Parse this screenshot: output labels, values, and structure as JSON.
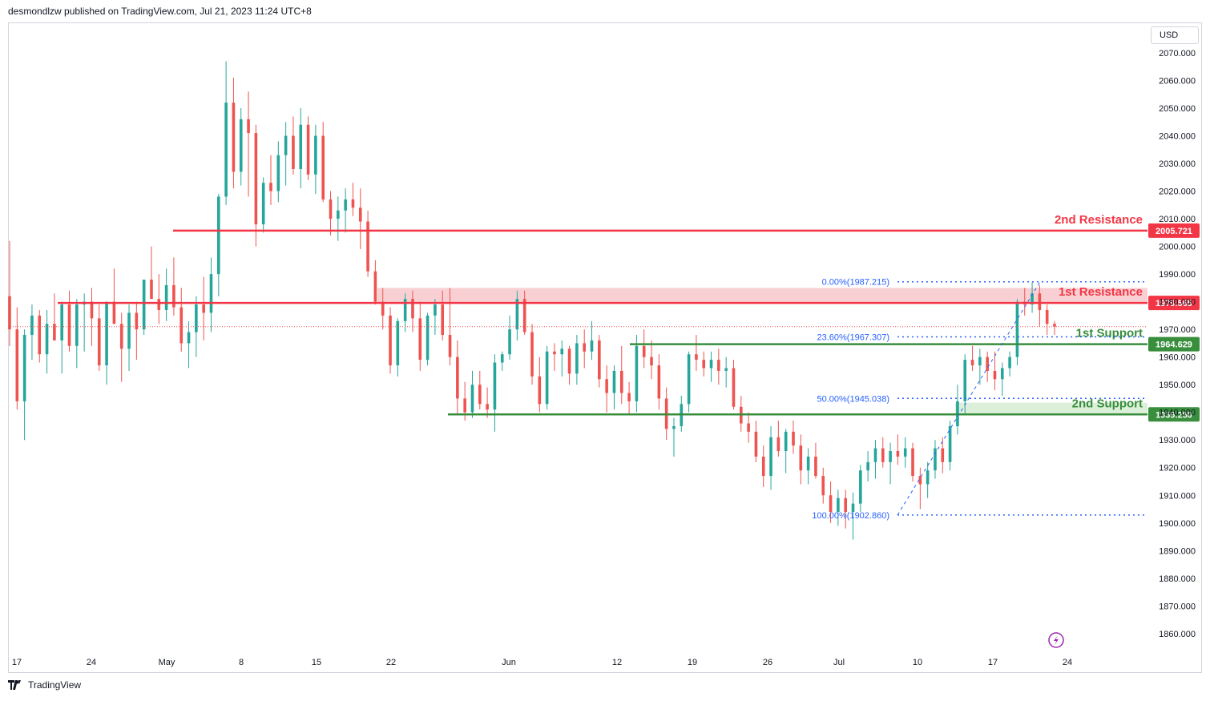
{
  "header": {
    "publisher_text": "desmondlzw published on TradingView.com, Jul 21, 2023 11:24 UTC+8"
  },
  "footer": {
    "logo_text": "TradingView"
  },
  "currency": {
    "label": "USD"
  },
  "chart_data": {
    "type": "candlestick",
    "y_axis": {
      "ticks": [
        1860,
        1870,
        1880,
        1890,
        1900,
        1910,
        1920,
        1930,
        1940,
        1950,
        1960,
        1970,
        1980,
        1990,
        2000,
        2010,
        2020,
        2030,
        2040,
        2050,
        2060,
        2070
      ],
      "tick_labels": [
        "1860.000",
        "1870.000",
        "1880.000",
        "1890.000",
        "1900.000",
        "1910.000",
        "1920.000",
        "1930.000",
        "1940.000",
        "1950.000",
        "1960.000",
        "1970.000",
        "1980.000",
        "1990.000",
        "2000.000",
        "2010.000",
        "2020.000",
        "2030.000",
        "2040.000",
        "2050.000",
        "2060.000",
        "2070.000"
      ],
      "range": [
        1853,
        2081
      ]
    },
    "x_axis": {
      "labels": [
        "17",
        "24",
        "May",
        "8",
        "15",
        "22",
        "Jun",
        "12",
        "19",
        "26",
        "Jul",
        "10",
        "17",
        "24"
      ]
    },
    "levels": [
      {
        "name": "2nd Resistance",
        "value": 2005.721,
        "label": "2005.721",
        "color": "#f23645"
      },
      {
        "name": "1st Resistance",
        "value": 1979.565,
        "label": "1979.565",
        "color": "#f23645"
      },
      {
        "name": "1st Support",
        "value": 1964.629,
        "label": "1964.629",
        "color": "#388e3c"
      },
      {
        "name": "2nd Support",
        "value": 1939.25,
        "label": "1939.250",
        "color": "#388e3c"
      }
    ],
    "zones": [
      {
        "from": 1979.565,
        "to": 1985.0,
        "color": "#f8d0d3"
      },
      {
        "from": 1939.25,
        "to": 1943.5,
        "color": "#dcefd9"
      }
    ],
    "fibonacci": [
      {
        "label": "0.00%(1987.215)",
        "value": 1987.215
      },
      {
        "label": "23.60%(1967.307)",
        "value": 1967.307
      },
      {
        "label": "50.00%(1945.038)",
        "value": 1945.038
      },
      {
        "label": "100.00%(1902.860)",
        "value": 1902.86
      }
    ],
    "last_price": 1971.0,
    "colors": {
      "up": "#26a69a",
      "down": "#ef5350"
    },
    "candles": [
      [
        1982,
        2002,
        1964,
        1970
      ],
      [
        1970,
        1978,
        1941,
        1944
      ],
      [
        1944,
        1970,
        1930,
        1968
      ],
      [
        1968,
        1979,
        1959,
        1975
      ],
      [
        1975,
        1977,
        1958,
        1961
      ],
      [
        1961,
        1977,
        1954,
        1972
      ],
      [
        1972,
        1983,
        1966,
        1966
      ],
      [
        1966,
        1980,
        1954,
        1979
      ],
      [
        1979,
        1984,
        1962,
        1964
      ],
      [
        1964,
        1981,
        1956,
        1979
      ],
      [
        1979,
        1983,
        1962,
        1980
      ],
      [
        1980,
        1985,
        1964,
        1974
      ],
      [
        1974,
        1979,
        1955,
        1957
      ],
      [
        1957,
        1980,
        1950,
        1980
      ],
      [
        1980,
        1992,
        1972,
        1972
      ],
      [
        1972,
        1976,
        1951,
        1963
      ],
      [
        1963,
        1979,
        1955,
        1976
      ],
      [
        1976,
        1980,
        1959,
        1970
      ],
      [
        1970,
        1988,
        1968,
        1988
      ],
      [
        1988,
        2000,
        1981,
        1981
      ],
      [
        1981,
        1990,
        1972,
        1977
      ],
      [
        1977,
        1992,
        1973,
        1986
      ],
      [
        1986,
        1996,
        1975,
        1978
      ],
      [
        1978,
        1985,
        1962,
        1965
      ],
      [
        1965,
        1973,
        1956,
        1969
      ],
      [
        1969,
        1982,
        1960,
        1979
      ],
      [
        1979,
        1989,
        1966,
        1976
      ],
      [
        1976,
        1996,
        1969,
        1990
      ],
      [
        1990,
        2019,
        1982,
        2018
      ],
      [
        2018,
        2067,
        2015,
        2052
      ],
      [
        2052,
        2061,
        2021,
        2027
      ],
      [
        2027,
        2050,
        2022,
        2046
      ],
      [
        2046,
        2056,
        2018,
        2041
      ],
      [
        2041,
        2044,
        2000,
        2008
      ],
      [
        2008,
        2025,
        2005,
        2023
      ],
      [
        2023,
        2033,
        2015,
        2020
      ],
      [
        2020,
        2038,
        2016,
        2033
      ],
      [
        2033,
        2045,
        2022,
        2040
      ],
      [
        2040,
        2047,
        2026,
        2028
      ],
      [
        2028,
        2050,
        2021,
        2044
      ],
      [
        2044,
        2047,
        2024,
        2026
      ],
      [
        2026,
        2044,
        2019,
        2040
      ],
      [
        2040,
        2045,
        2016,
        2017
      ],
      [
        2017,
        2020,
        2004,
        2010
      ],
      [
        2010,
        2018,
        2002,
        2013
      ],
      [
        2013,
        2021,
        2005,
        2017
      ],
      [
        2017,
        2023,
        2011,
        2014
      ],
      [
        2014,
        2021,
        1999,
        2009
      ],
      [
        2009,
        2013,
        1989,
        1991
      ],
      [
        1991,
        1995,
        1979,
        1980
      ],
      [
        1980,
        1985,
        1970,
        1975
      ],
      [
        1975,
        1978,
        1954,
        1957
      ],
      [
        1957,
        1974,
        1953,
        1973
      ],
      [
        1973,
        1983,
        1969,
        1981
      ],
      [
        1981,
        1984,
        1969,
        1974
      ],
      [
        1974,
        1980,
        1955,
        1959
      ],
      [
        1959,
        1976,
        1957,
        1975
      ],
      [
        1975,
        1981,
        1968,
        1979
      ],
      [
        1979,
        1984,
        1966,
        1968
      ],
      [
        1968,
        1985,
        1957,
        1960
      ],
      [
        1960,
        1966,
        1939,
        1945
      ],
      [
        1945,
        1951,
        1937,
        1940
      ],
      [
        1940,
        1955,
        1938,
        1950
      ],
      [
        1950,
        1955,
        1941,
        1943
      ],
      [
        1943,
        1949,
        1938,
        1941
      ],
      [
        1941,
        1961,
        1933,
        1958
      ],
      [
        1958,
        1962,
        1955,
        1961
      ],
      [
        1961,
        1975,
        1959,
        1970
      ],
      [
        1970,
        1984,
        1966,
        1981
      ],
      [
        1981,
        1984,
        1968,
        1969
      ],
      [
        1969,
        1972,
        1950,
        1953
      ],
      [
        1953,
        1960,
        1940,
        1943
      ],
      [
        1943,
        1964,
        1941,
        1962
      ],
      [
        1962,
        1965,
        1955,
        1961
      ],
      [
        1961,
        1966,
        1953,
        1963
      ],
      [
        1963,
        1964,
        1950,
        1954
      ],
      [
        1954,
        1968,
        1950,
        1965
      ],
      [
        1965,
        1970,
        1956,
        1962
      ],
      [
        1962,
        1973,
        1959,
        1966
      ],
      [
        1966,
        1968,
        1949,
        1952
      ],
      [
        1952,
        1957,
        1940,
        1947
      ],
      [
        1947,
        1957,
        1941,
        1955
      ],
      [
        1955,
        1964,
        1943,
        1947
      ],
      [
        1947,
        1951,
        1939,
        1944
      ],
      [
        1944,
        1968,
        1940,
        1964
      ],
      [
        1964,
        1970,
        1956,
        1960
      ],
      [
        1960,
        1966,
        1952,
        1957
      ],
      [
        1957,
        1961,
        1941,
        1945
      ],
      [
        1945,
        1949,
        1930,
        1934
      ],
      [
        1934,
        1938,
        1924,
        1935
      ],
      [
        1935,
        1946,
        1933,
        1943
      ],
      [
        1943,
        1962,
        1940,
        1961
      ],
      [
        1961,
        1968,
        1955,
        1959
      ],
      [
        1959,
        1962,
        1953,
        1956
      ],
      [
        1956,
        1962,
        1951,
        1959
      ],
      [
        1959,
        1963,
        1950,
        1955
      ],
      [
        1955,
        1960,
        1949,
        1956
      ],
      [
        1956,
        1959,
        1941,
        1942
      ],
      [
        1942,
        1946,
        1933,
        1936
      ],
      [
        1936,
        1940,
        1929,
        1933
      ],
      [
        1933,
        1937,
        1922,
        1924
      ],
      [
        1924,
        1928,
        1913,
        1917
      ],
      [
        1917,
        1935,
        1912,
        1931
      ],
      [
        1931,
        1937,
        1924,
        1926
      ],
      [
        1926,
        1934,
        1918,
        1933
      ],
      [
        1933,
        1937,
        1925,
        1928
      ],
      [
        1928,
        1932,
        1914,
        1919
      ],
      [
        1919,
        1927,
        1914,
        1924
      ],
      [
        1924,
        1929,
        1916,
        1917
      ],
      [
        1917,
        1920,
        1907,
        1910
      ],
      [
        1910,
        1915,
        1900,
        1904
      ],
      [
        1904,
        1912,
        1899,
        1909
      ],
      [
        1909,
        1912,
        1898,
        1904
      ],
      [
        1904,
        1911,
        1894,
        1907
      ],
      [
        1907,
        1921,
        1904,
        1919
      ],
      [
        1919,
        1926,
        1915,
        1922
      ],
      [
        1922,
        1930,
        1916,
        1927
      ],
      [
        1927,
        1931,
        1920,
        1922
      ],
      [
        1922,
        1929,
        1914,
        1926
      ],
      [
        1926,
        1932,
        1921,
        1924
      ],
      [
        1924,
        1931,
        1920,
        1927
      ],
      [
        1927,
        1929,
        1915,
        1917
      ],
      [
        1917,
        1920,
        1905,
        1914
      ],
      [
        1914,
        1922,
        1909,
        1919
      ],
      [
        1919,
        1930,
        1916,
        1927
      ],
      [
        1927,
        1931,
        1918,
        1922
      ],
      [
        1922,
        1937,
        1919,
        1935
      ],
      [
        1935,
        1950,
        1932,
        1944
      ],
      [
        1944,
        1961,
        1939,
        1959
      ],
      [
        1959,
        1964,
        1955,
        1957
      ],
      [
        1957,
        1963,
        1950,
        1960
      ],
      [
        1960,
        1962,
        1951,
        1955
      ],
      [
        1955,
        1962,
        1948,
        1952
      ],
      [
        1952,
        1958,
        1946,
        1956
      ],
      [
        1956,
        1962,
        1953,
        1960
      ],
      [
        1960,
        1981,
        1957,
        1980
      ],
      [
        1980,
        1985,
        1975,
        1979
      ],
      [
        1979,
        1987,
        1976,
        1983
      ],
      [
        1983,
        1986,
        1971,
        1977
      ],
      [
        1977,
        1979,
        1968,
        1972
      ],
      [
        1972,
        1973,
        1968,
        1971
      ]
    ]
  }
}
